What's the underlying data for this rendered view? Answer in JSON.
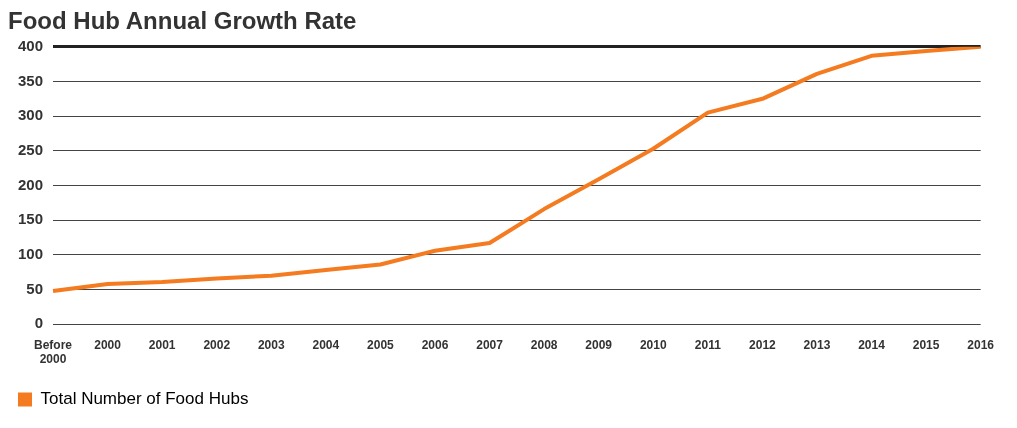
{
  "chart_data": {
    "type": "line",
    "title": "Food Hub Annual Growth Rate",
    "categories": [
      "Before 2000",
      "2000",
      "2001",
      "2002",
      "2003",
      "2004",
      "2005",
      "2006",
      "2007",
      "2008",
      "2009",
      "2010",
      "2011",
      "2012",
      "2013",
      "2014",
      "2015",
      "2016"
    ],
    "series": [
      {
        "name": "Total Number of Food Hubs",
        "color": "#f47b20",
        "values": [
          48,
          58,
          61,
          66,
          70,
          78,
          86,
          106,
          117,
          166,
          209,
          253,
          305,
          325,
          361,
          387,
          394,
          400
        ]
      }
    ],
    "ylim": [
      0,
      400
    ],
    "yticks": [
      0,
      50,
      100,
      150,
      200,
      250,
      300,
      350,
      400
    ],
    "grid": "y",
    "legend": "bottom left",
    "marker": "none",
    "line_style": "solid"
  }
}
